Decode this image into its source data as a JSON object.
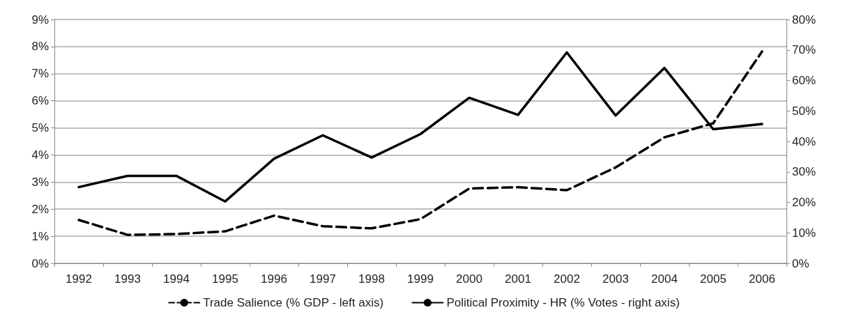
{
  "chart_data": {
    "type": "line",
    "categories": [
      "1992",
      "1993",
      "1994",
      "1995",
      "1996",
      "1997",
      "1998",
      "1999",
      "2000",
      "2001",
      "2002",
      "2003",
      "2004",
      "2005",
      "2006"
    ],
    "series": [
      {
        "name": "Trade Salience (% GDP - left axis)",
        "color": "#000000",
        "line_style": "dashed",
        "values": [
          1.6,
          1.05,
          1.08,
          1.18,
          1.76,
          1.37,
          1.29,
          1.63,
          2.76,
          2.81,
          2.7,
          3.54,
          4.65,
          5.17,
          7.82
        ]
      },
      {
        "name": "Political Proximity - HR (% Votes - right axis)",
        "color": "#000000",
        "line_style": "solid",
        "axis": "y2",
        "values": [
          25,
          28.7,
          28.7,
          20.3,
          34.3,
          42,
          34.7,
          42.4,
          54.3,
          48.7,
          69.2,
          48.5,
          64.1,
          44,
          45.7
        ]
      }
    ],
    "ylim": [
      0,
      9
    ],
    "yticks": [
      {
        "value": 0,
        "label": "0%"
      },
      {
        "value": 1,
        "label": "1%"
      },
      {
        "value": 2,
        "label": "2%"
      },
      {
        "value": 3,
        "label": "3%"
      },
      {
        "value": 4,
        "label": "4%"
      },
      {
        "value": 5,
        "label": "5%"
      },
      {
        "value": 6,
        "label": "6%"
      },
      {
        "value": 7,
        "label": "7%"
      },
      {
        "value": 8,
        "label": "8%"
      },
      {
        "value": 9,
        "label": "9%"
      }
    ],
    "y2lim": [
      0,
      80
    ],
    "y2ticks": [
      {
        "value": 0,
        "label": "0%"
      },
      {
        "value": 10,
        "label": "10%"
      },
      {
        "value": 20,
        "label": "20%"
      },
      {
        "value": 30,
        "label": "30%"
      },
      {
        "value": 40,
        "label": "40%"
      },
      {
        "value": 50,
        "label": "50%"
      },
      {
        "value": 60,
        "label": "60%"
      },
      {
        "value": 70,
        "label": "70%"
      },
      {
        "value": 80,
        "label": "80%"
      }
    ],
    "grid": "y",
    "legend": "bottom",
    "marker": "none"
  }
}
